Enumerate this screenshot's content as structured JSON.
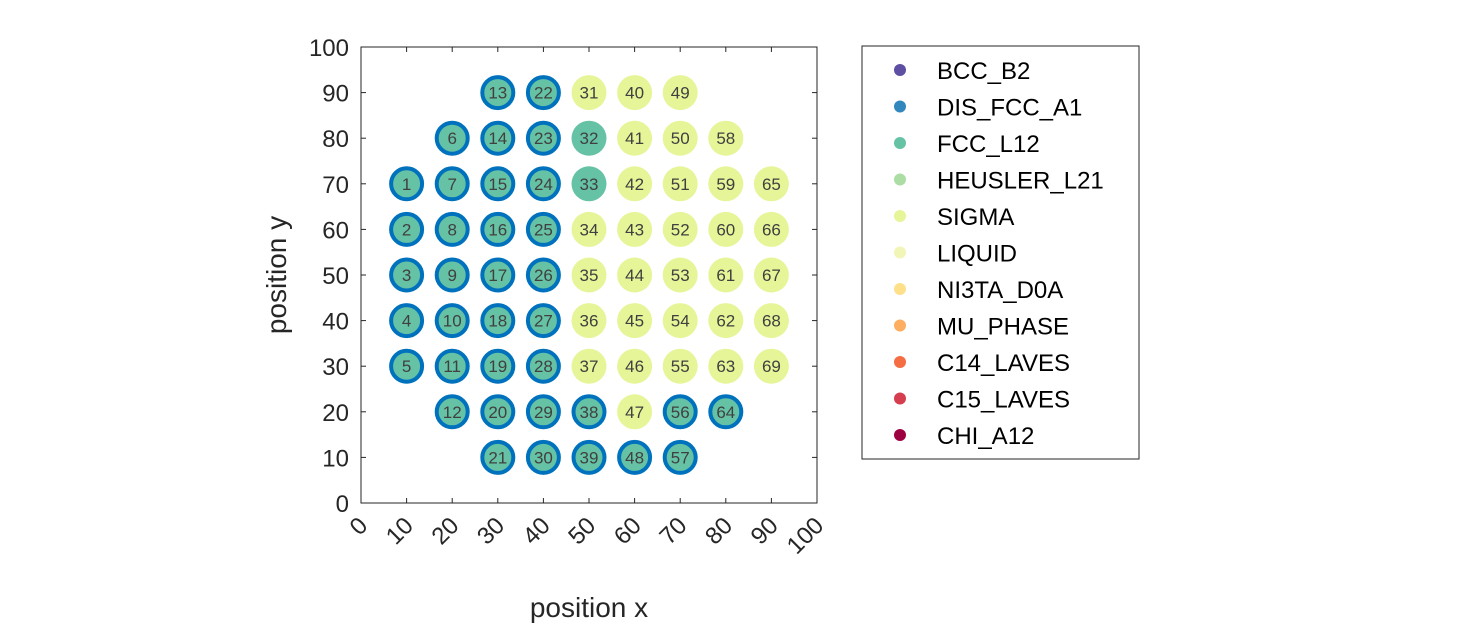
{
  "chart_data": {
    "type": "scatter",
    "xlabel": "position x",
    "ylabel": "position y",
    "xlim": [
      0,
      100
    ],
    "ylim": [
      0,
      100
    ],
    "xticks": [
      "0",
      "10",
      "20",
      "30",
      "40",
      "50",
      "60",
      "70",
      "80",
      "90",
      "100"
    ],
    "yticks": [
      "0",
      "10",
      "20",
      "30",
      "40",
      "50",
      "60",
      "70",
      "80",
      "90",
      "100"
    ],
    "xtick_rotation_deg": 45,
    "grid": false,
    "legend_placement": "right-outside",
    "legend": [
      {
        "name": "BCC_B2",
        "color": "#5e4fa2"
      },
      {
        "name": "DIS_FCC_A1",
        "color": "#3288bd"
      },
      {
        "name": "FCC_L12",
        "color": "#66c2a5"
      },
      {
        "name": "HEUSLER_L21",
        "color": "#abdda4"
      },
      {
        "name": "SIGMA",
        "color": "#e6f598"
      },
      {
        "name": "LIQUID",
        "color": "#f2f5b8"
      },
      {
        "name": "NI3TA_D0A",
        "color": "#fee08b"
      },
      {
        "name": "MU_PHASE",
        "color": "#fdae61"
      },
      {
        "name": "C14_LAVES",
        "color": "#f46d43"
      },
      {
        "name": "C15_LAVES",
        "color": "#d53e4f"
      },
      {
        "name": "CHI_A12",
        "color": "#9e0142"
      }
    ],
    "ring_color": "#0072bd",
    "points": [
      {
        "id": "1",
        "x": 10,
        "y": 70,
        "phase": "FCC_L12",
        "ring": true
      },
      {
        "id": "2",
        "x": 10,
        "y": 60,
        "phase": "FCC_L12",
        "ring": true
      },
      {
        "id": "3",
        "x": 10,
        "y": 50,
        "phase": "FCC_L12",
        "ring": true
      },
      {
        "id": "4",
        "x": 10,
        "y": 40,
        "phase": "FCC_L12",
        "ring": true
      },
      {
        "id": "5",
        "x": 10,
        "y": 30,
        "phase": "FCC_L12",
        "ring": true
      },
      {
        "id": "6",
        "x": 20,
        "y": 80,
        "phase": "FCC_L12",
        "ring": true
      },
      {
        "id": "7",
        "x": 20,
        "y": 70,
        "phase": "FCC_L12",
        "ring": true
      },
      {
        "id": "8",
        "x": 20,
        "y": 60,
        "phase": "FCC_L12",
        "ring": true
      },
      {
        "id": "9",
        "x": 20,
        "y": 50,
        "phase": "FCC_L12",
        "ring": true
      },
      {
        "id": "10",
        "x": 20,
        "y": 40,
        "phase": "FCC_L12",
        "ring": true
      },
      {
        "id": "11",
        "x": 20,
        "y": 30,
        "phase": "FCC_L12",
        "ring": true
      },
      {
        "id": "12",
        "x": 20,
        "y": 20,
        "phase": "FCC_L12",
        "ring": true
      },
      {
        "id": "13",
        "x": 30,
        "y": 90,
        "phase": "FCC_L12",
        "ring": true
      },
      {
        "id": "14",
        "x": 30,
        "y": 80,
        "phase": "FCC_L12",
        "ring": true
      },
      {
        "id": "15",
        "x": 30,
        "y": 70,
        "phase": "FCC_L12",
        "ring": true
      },
      {
        "id": "16",
        "x": 30,
        "y": 60,
        "phase": "FCC_L12",
        "ring": true
      },
      {
        "id": "17",
        "x": 30,
        "y": 50,
        "phase": "FCC_L12",
        "ring": true
      },
      {
        "id": "18",
        "x": 30,
        "y": 40,
        "phase": "FCC_L12",
        "ring": true
      },
      {
        "id": "19",
        "x": 30,
        "y": 30,
        "phase": "FCC_L12",
        "ring": true
      },
      {
        "id": "20",
        "x": 30,
        "y": 20,
        "phase": "FCC_L12",
        "ring": true
      },
      {
        "id": "21",
        "x": 30,
        "y": 10,
        "phase": "FCC_L12",
        "ring": true
      },
      {
        "id": "22",
        "x": 40,
        "y": 90,
        "phase": "FCC_L12",
        "ring": true
      },
      {
        "id": "23",
        "x": 40,
        "y": 80,
        "phase": "FCC_L12",
        "ring": true
      },
      {
        "id": "24",
        "x": 40,
        "y": 70,
        "phase": "FCC_L12",
        "ring": true
      },
      {
        "id": "25",
        "x": 40,
        "y": 60,
        "phase": "FCC_L12",
        "ring": true
      },
      {
        "id": "26",
        "x": 40,
        "y": 50,
        "phase": "FCC_L12",
        "ring": true
      },
      {
        "id": "27",
        "x": 40,
        "y": 40,
        "phase": "FCC_L12",
        "ring": true
      },
      {
        "id": "28",
        "x": 40,
        "y": 30,
        "phase": "FCC_L12",
        "ring": true
      },
      {
        "id": "29",
        "x": 40,
        "y": 20,
        "phase": "FCC_L12",
        "ring": true
      },
      {
        "id": "30",
        "x": 40,
        "y": 10,
        "phase": "FCC_L12",
        "ring": true
      },
      {
        "id": "31",
        "x": 50,
        "y": 90,
        "phase": "SIGMA",
        "ring": false
      },
      {
        "id": "32",
        "x": 50,
        "y": 80,
        "phase": "FCC_L12",
        "ring": false
      },
      {
        "id": "33",
        "x": 50,
        "y": 70,
        "phase": "FCC_L12",
        "ring": false
      },
      {
        "id": "34",
        "x": 50,
        "y": 60,
        "phase": "SIGMA",
        "ring": false
      },
      {
        "id": "35",
        "x": 50,
        "y": 50,
        "phase": "SIGMA",
        "ring": false
      },
      {
        "id": "36",
        "x": 50,
        "y": 40,
        "phase": "SIGMA",
        "ring": false
      },
      {
        "id": "37",
        "x": 50,
        "y": 30,
        "phase": "SIGMA",
        "ring": false
      },
      {
        "id": "38",
        "x": 50,
        "y": 20,
        "phase": "FCC_L12",
        "ring": true
      },
      {
        "id": "39",
        "x": 50,
        "y": 10,
        "phase": "FCC_L12",
        "ring": true
      },
      {
        "id": "40",
        "x": 60,
        "y": 90,
        "phase": "SIGMA",
        "ring": false
      },
      {
        "id": "41",
        "x": 60,
        "y": 80,
        "phase": "SIGMA",
        "ring": false
      },
      {
        "id": "42",
        "x": 60,
        "y": 70,
        "phase": "SIGMA",
        "ring": false
      },
      {
        "id": "43",
        "x": 60,
        "y": 60,
        "phase": "SIGMA",
        "ring": false
      },
      {
        "id": "44",
        "x": 60,
        "y": 50,
        "phase": "SIGMA",
        "ring": false
      },
      {
        "id": "45",
        "x": 60,
        "y": 40,
        "phase": "SIGMA",
        "ring": false
      },
      {
        "id": "46",
        "x": 60,
        "y": 30,
        "phase": "SIGMA",
        "ring": false
      },
      {
        "id": "47",
        "x": 60,
        "y": 20,
        "phase": "SIGMA",
        "ring": false
      },
      {
        "id": "48",
        "x": 60,
        "y": 10,
        "phase": "FCC_L12",
        "ring": true
      },
      {
        "id": "49",
        "x": 70,
        "y": 90,
        "phase": "SIGMA",
        "ring": false
      },
      {
        "id": "50",
        "x": 70,
        "y": 80,
        "phase": "SIGMA",
        "ring": false
      },
      {
        "id": "51",
        "x": 70,
        "y": 70,
        "phase": "SIGMA",
        "ring": false
      },
      {
        "id": "52",
        "x": 70,
        "y": 60,
        "phase": "SIGMA",
        "ring": false
      },
      {
        "id": "53",
        "x": 70,
        "y": 50,
        "phase": "SIGMA",
        "ring": false
      },
      {
        "id": "54",
        "x": 70,
        "y": 40,
        "phase": "SIGMA",
        "ring": false
      },
      {
        "id": "55",
        "x": 70,
        "y": 30,
        "phase": "SIGMA",
        "ring": false
      },
      {
        "id": "56",
        "x": 70,
        "y": 20,
        "phase": "FCC_L12",
        "ring": true
      },
      {
        "id": "57",
        "x": 70,
        "y": 10,
        "phase": "FCC_L12",
        "ring": true
      },
      {
        "id": "58",
        "x": 80,
        "y": 80,
        "phase": "SIGMA",
        "ring": false
      },
      {
        "id": "59",
        "x": 80,
        "y": 70,
        "phase": "SIGMA",
        "ring": false
      },
      {
        "id": "60",
        "x": 80,
        "y": 60,
        "phase": "SIGMA",
        "ring": false
      },
      {
        "id": "61",
        "x": 80,
        "y": 50,
        "phase": "SIGMA",
        "ring": false
      },
      {
        "id": "62",
        "x": 80,
        "y": 40,
        "phase": "SIGMA",
        "ring": false
      },
      {
        "id": "63",
        "x": 80,
        "y": 30,
        "phase": "SIGMA",
        "ring": false
      },
      {
        "id": "64",
        "x": 80,
        "y": 20,
        "phase": "FCC_L12",
        "ring": true
      },
      {
        "id": "65",
        "x": 90,
        "y": 70,
        "phase": "SIGMA",
        "ring": false
      },
      {
        "id": "66",
        "x": 90,
        "y": 60,
        "phase": "SIGMA",
        "ring": false
      },
      {
        "id": "67",
        "x": 90,
        "y": 50,
        "phase": "SIGMA",
        "ring": false
      },
      {
        "id": "68",
        "x": 90,
        "y": 40,
        "phase": "SIGMA",
        "ring": false
      },
      {
        "id": "69",
        "x": 90,
        "y": 30,
        "phase": "SIGMA",
        "ring": false
      }
    ]
  }
}
